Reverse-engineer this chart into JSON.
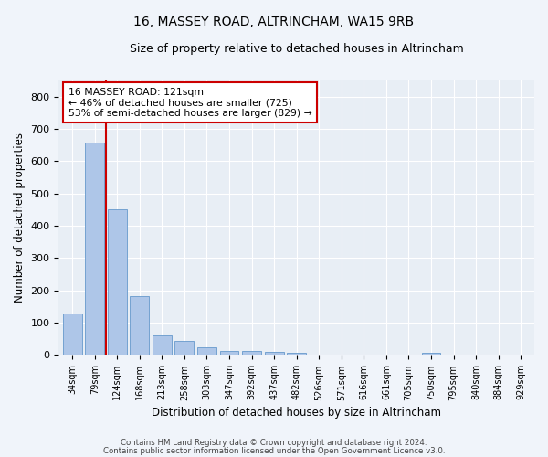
{
  "title1": "16, MASSEY ROAD, ALTRINCHAM, WA15 9RB",
  "title2": "Size of property relative to detached houses in Altrincham",
  "xlabel": "Distribution of detached houses by size in Altrincham",
  "ylabel": "Number of detached properties",
  "bin_labels": [
    "34sqm",
    "79sqm",
    "124sqm",
    "168sqm",
    "213sqm",
    "258sqm",
    "303sqm",
    "347sqm",
    "392sqm",
    "437sqm",
    "482sqm",
    "526sqm",
    "571sqm",
    "616sqm",
    "661sqm",
    "705sqm",
    "750sqm",
    "795sqm",
    "840sqm",
    "884sqm",
    "929sqm"
  ],
  "bar_values": [
    128,
    658,
    452,
    183,
    60,
    43,
    25,
    12,
    13,
    11,
    8,
    0,
    0,
    0,
    0,
    0,
    8,
    0,
    0,
    0,
    0
  ],
  "bar_color": "#aec6e8",
  "bar_edge_color": "#6699cc",
  "ylim": [
    0,
    850
  ],
  "yticks": [
    0,
    100,
    200,
    300,
    400,
    500,
    600,
    700,
    800
  ],
  "annotation_text1": "16 MASSEY ROAD: 121sqm",
  "annotation_text2": "← 46% of detached houses are smaller (725)",
  "annotation_text3": "53% of semi-detached houses are larger (829) →",
  "vline_color": "#cc0000",
  "annotation_box_color": "#ffffff",
  "annotation_box_edge": "#cc0000",
  "footer1": "Contains HM Land Registry data © Crown copyright and database right 2024.",
  "footer2": "Contains public sector information licensed under the Open Government Licence v3.0.",
  "bg_color": "#e8eef5",
  "grid_color": "#ffffff",
  "fig_bg_color": "#f0f4fa"
}
